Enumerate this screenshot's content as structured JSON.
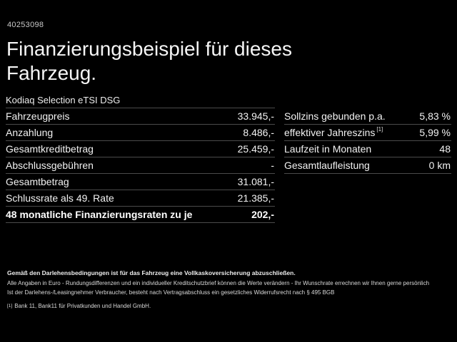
{
  "header": {
    "reference_number": "40253098",
    "title": "Finanzierungsbeispiel für dieses Fahrzeug."
  },
  "vehicle": {
    "model": "Kodiaq Selection eTSI DSG"
  },
  "left_table": {
    "rows": [
      {
        "label": "Fahrzeugpreis",
        "value": "33.945,-"
      },
      {
        "label": "Anzahlung",
        "value": "8.486,-"
      },
      {
        "label": "Gesamtkreditbetrag",
        "value": "25.459,-"
      },
      {
        "label": "Abschlussgebühren",
        "value": "-"
      },
      {
        "label": "Gesamtbetrag",
        "value": "31.081,-"
      },
      {
        "label": "Schlussrate als 49. Rate",
        "value": "21.385,-"
      },
      {
        "label": "48 monatliche Finanzierungsraten zu je",
        "value": "202,-"
      }
    ]
  },
  "right_table": {
    "rows": [
      {
        "label": "Sollzins gebunden p.a.",
        "sup": "",
        "value": "5,83 %"
      },
      {
        "label": "effektiver Jahreszins",
        "sup": "[1]",
        "value": "5,99 %"
      },
      {
        "label": "Laufzeit in Monaten",
        "sup": "",
        "value": "48"
      },
      {
        "label": "Gesamtlaufleistung",
        "sup": "",
        "value": "0 km"
      }
    ]
  },
  "footer": {
    "line1": "Gemäß den Darlehensbedingungen ist für das Fahrzeug eine Vollkaskoversicherung abzuschließen.",
    "line2": "Alle Angaben in Euro - Rundungsdifferenzen und ein individueller Kreditschutzbrief können die Werte verändern - Ihr Wunschrate errechnen wir Ihnen gerne persönlich",
    "line3": "Ist der Darlehens-/Leasingnehmer Verbraucher, besteht nach Vertragsabschluss ein gesetzliches Widerrufsrecht nach § 495 BGB",
    "footnote_marker": "[1]",
    "footnote": "Bank 11, Bank11 für Privatkunden und Handel GmbH."
  },
  "colors": {
    "background": "#000000",
    "text": "#ffffff",
    "divider": "#4b4b4b"
  }
}
